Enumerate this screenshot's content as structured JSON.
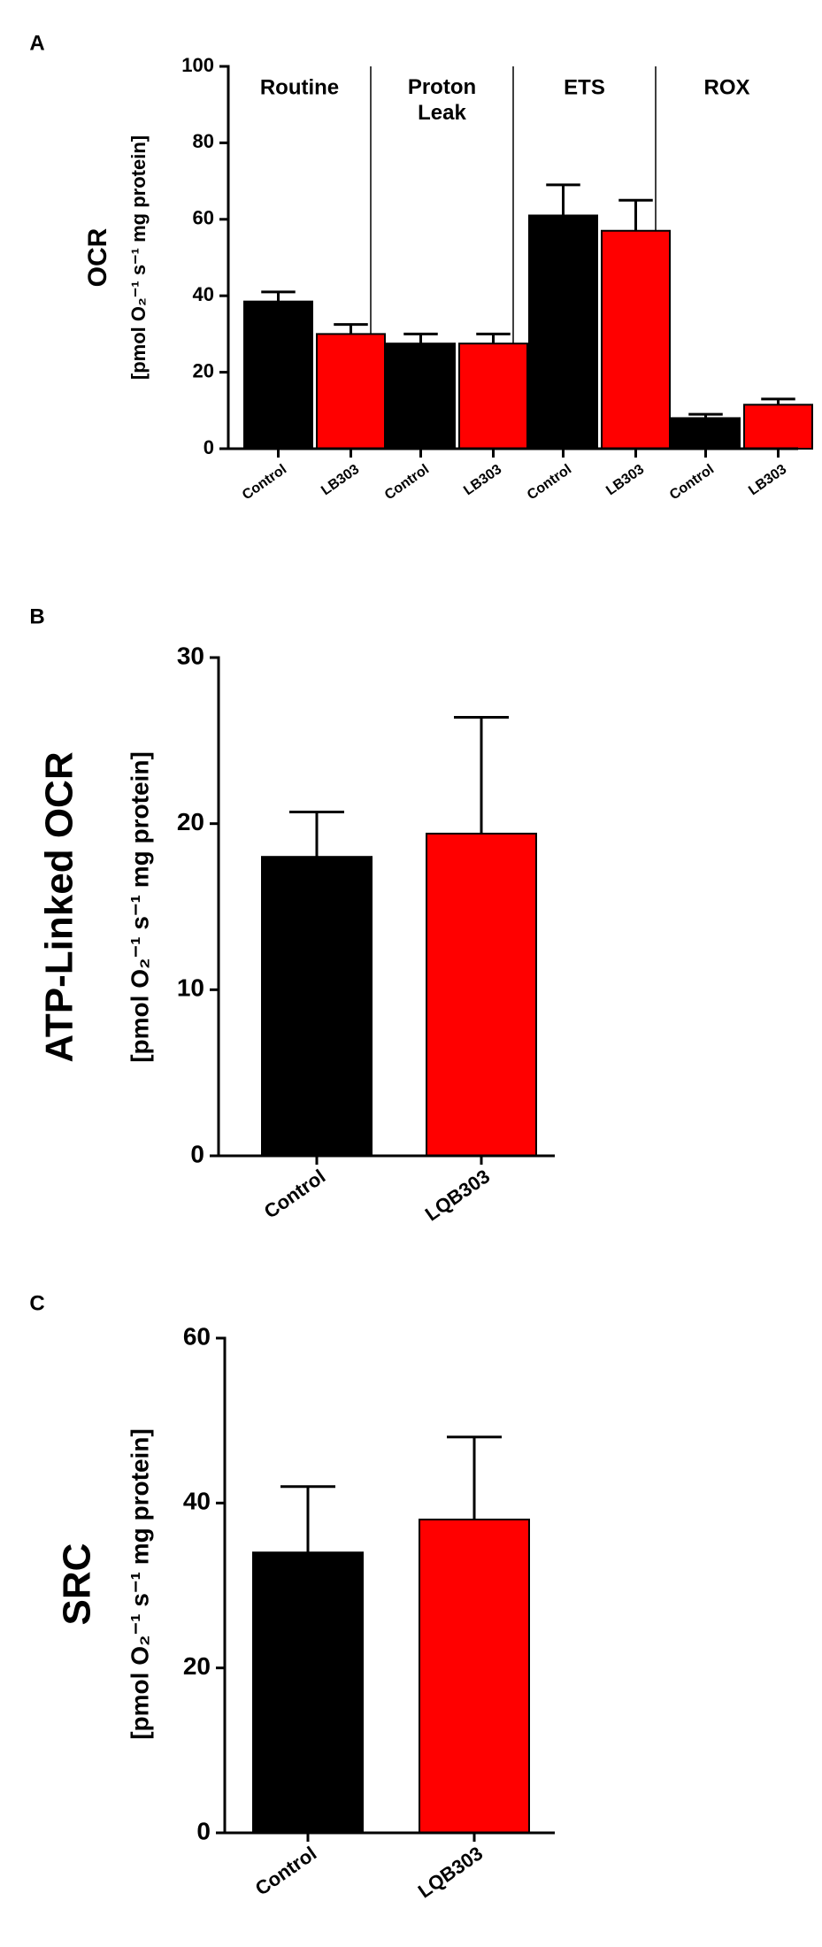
{
  "chart_data": [
    {
      "type": "bar",
      "panel": "A",
      "y_label": "OCR",
      "y_units": "[pmol O₂⁻¹ s⁻¹ mg protein]",
      "groups": [
        "Routine",
        "Proton Leak",
        "ETS",
        "ROX"
      ],
      "categories": [
        "Control",
        "LB303",
        "Control",
        "LB303",
        "Control",
        "LB303",
        "Control",
        "LB303"
      ],
      "values": [
        38.5,
        30,
        27.5,
        27.5,
        61,
        57,
        8,
        11.5
      ],
      "errors": [
        2.5,
        2.5,
        2.5,
        2.5,
        8,
        8,
        1,
        1.5
      ],
      "colors": [
        "#000000",
        "#ff0000",
        "#000000",
        "#ff0000",
        "#000000",
        "#ff0000",
        "#000000",
        "#ff0000"
      ],
      "ylim": [
        0,
        100
      ],
      "yticks": [
        0,
        20,
        40,
        60,
        80,
        100
      ]
    },
    {
      "type": "bar",
      "panel": "B",
      "y_label": "ATP-Linked OCR",
      "y_units": "[pmol O₂⁻¹ s⁻¹ mg protein]",
      "categories": [
        "Control",
        "LQB303"
      ],
      "values": [
        18,
        19.4
      ],
      "errors": [
        2.7,
        7
      ],
      "colors": [
        "#000000",
        "#ff0000"
      ],
      "ylim": [
        0,
        30
      ],
      "yticks": [
        0,
        10,
        20,
        30
      ]
    },
    {
      "type": "bar",
      "panel": "C",
      "y_label": "SRC",
      "y_units": "[pmol O₂⁻¹ s⁻¹ mg protein]",
      "categories": [
        "Control",
        "LQB303"
      ],
      "values": [
        34,
        38
      ],
      "errors": [
        8,
        10
      ],
      "colors": [
        "#000000",
        "#ff0000"
      ],
      "ylim": [
        0,
        60
      ],
      "yticks": [
        0,
        20,
        40,
        60
      ]
    }
  ]
}
